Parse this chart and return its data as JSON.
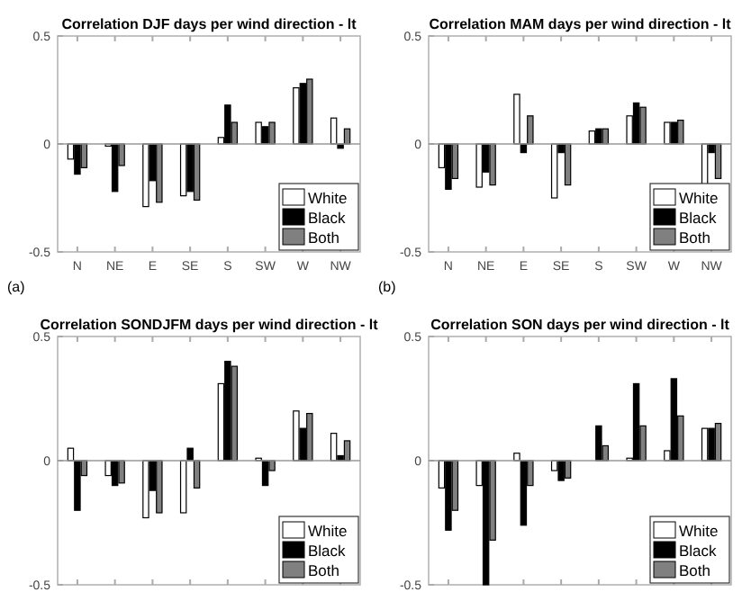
{
  "chart_data": [
    {
      "type": "bar",
      "title": "Correlation DJF days per wind direction - lt",
      "categories": [
        "N",
        "NE",
        "E",
        "SE",
        "S",
        "SW",
        "W",
        "NW"
      ],
      "ylim": [
        -0.5,
        0.5
      ],
      "yticks": [
        -0.5,
        0,
        0.5
      ],
      "legend": "bottom right",
      "annotations": [
        "(a)"
      ],
      "series": [
        {
          "name": "White",
          "color": "#ffffff",
          "values": [
            -0.07,
            -0.01,
            -0.29,
            -0.24,
            0.03,
            0.1,
            0.26,
            0.12
          ]
        },
        {
          "name": "Black",
          "color": "#000000",
          "values": [
            -0.14,
            -0.22,
            -0.17,
            -0.22,
            0.18,
            0.08,
            0.28,
            -0.02
          ]
        },
        {
          "name": "Both",
          "color": "#808080",
          "values": [
            -0.11,
            -0.1,
            -0.27,
            -0.26,
            0.1,
            0.1,
            0.3,
            0.07
          ]
        }
      ]
    },
    {
      "type": "bar",
      "title": "Correlation MAM days per wind direction - lt",
      "categories": [
        "N",
        "NE",
        "E",
        "SE",
        "S",
        "SW",
        "W",
        "NW"
      ],
      "ylim": [
        -0.5,
        0.5
      ],
      "yticks": [
        -0.5,
        0,
        0.5
      ],
      "legend": "bottom right",
      "annotations": [
        "(b)"
      ],
      "series": [
        {
          "name": "White",
          "color": "#ffffff",
          "values": [
            -0.11,
            -0.2,
            0.23,
            -0.25,
            0.06,
            0.13,
            0.1,
            -0.21
          ]
        },
        {
          "name": "Black",
          "color": "#000000",
          "values": [
            -0.21,
            -0.13,
            -0.04,
            -0.04,
            0.07,
            0.19,
            0.1,
            -0.04
          ]
        },
        {
          "name": "Both",
          "color": "#808080",
          "values": [
            -0.16,
            -0.19,
            0.13,
            -0.19,
            0.07,
            0.17,
            0.11,
            -0.16
          ]
        }
      ]
    },
    {
      "type": "bar",
      "title": "Correlation SONDJFM days per wind direction - lt",
      "categories": [
        null,
        null,
        null,
        null,
        null,
        null,
        null,
        null
      ],
      "ylim": [
        -0.5,
        0.5
      ],
      "yticks": [
        -0.5,
        0,
        0.5
      ],
      "legend": "bottom right",
      "series": [
        {
          "name": "White",
          "color": "#ffffff",
          "values": [
            0.05,
            -0.06,
            -0.23,
            -0.21,
            0.31,
            0.01,
            0.2,
            0.11
          ]
        },
        {
          "name": "Black",
          "color": "#000000",
          "values": [
            -0.2,
            -0.1,
            -0.12,
            0.05,
            0.4,
            -0.1,
            0.13,
            0.02
          ]
        },
        {
          "name": "Both",
          "color": "#808080",
          "values": [
            -0.06,
            -0.09,
            -0.21,
            -0.11,
            0.38,
            -0.04,
            0.19,
            0.08
          ]
        }
      ]
    },
    {
      "type": "bar",
      "title": "Correlation SON days per wind direction - lt",
      "categories": [
        null,
        null,
        null,
        null,
        null,
        null,
        null,
        null
      ],
      "ylim": [
        -0.5,
        0.5
      ],
      "yticks": [
        -0.5,
        0,
        0.5
      ],
      "legend": "bottom right",
      "series": [
        {
          "name": "White",
          "color": "#ffffff",
          "values": [
            -0.11,
            -0.1,
            0.03,
            -0.04,
            0.0,
            0.01,
            0.04,
            0.13
          ]
        },
        {
          "name": "Black",
          "color": "#000000",
          "values": [
            -0.28,
            -0.5,
            -0.26,
            -0.08,
            0.14,
            0.31,
            0.33,
            0.13
          ]
        },
        {
          "name": "Both",
          "color": "#808080",
          "values": [
            -0.2,
            -0.32,
            -0.1,
            -0.07,
            0.06,
            0.14,
            0.18,
            0.15
          ]
        }
      ]
    }
  ]
}
